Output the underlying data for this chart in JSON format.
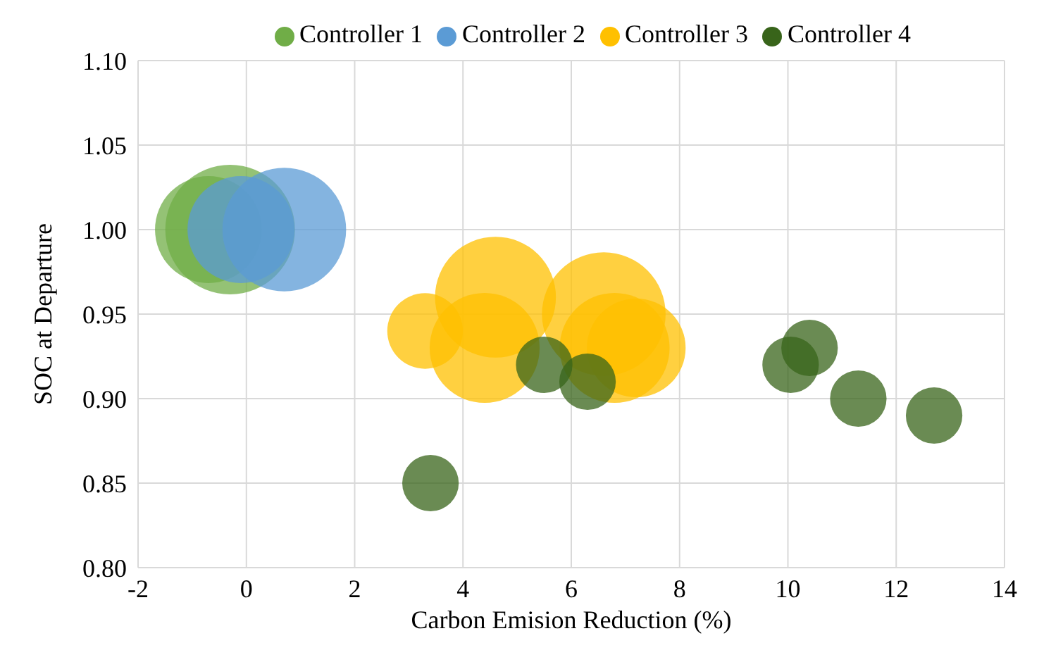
{
  "chart_data": {
    "type": "bubble",
    "xlabel": "Carbon Emision Reduction (%)",
    "ylabel": "SOC at Departure",
    "xlim": [
      -2,
      14
    ],
    "xticks": [
      -2,
      0,
      2,
      4,
      6,
      8,
      10,
      12,
      14
    ],
    "ylim": [
      0.8,
      1.1
    ],
    "yticks": [
      {
        "value": 0.8,
        "label": "0.80"
      },
      {
        "value": 0.85,
        "label": "0.85"
      },
      {
        "value": 0.9,
        "label": "0.90"
      },
      {
        "value": 0.95,
        "label": "0.95"
      },
      {
        "value": 1.0,
        "label": "1.00"
      },
      {
        "value": 1.05,
        "label": "1.05"
      },
      {
        "value": 1.1,
        "label": "1.10"
      }
    ],
    "grid": true,
    "legend": "top",
    "series": [
      {
        "name": "Controller 1",
        "color": "#70ad47",
        "x": [
          -0.7,
          -0.3
        ],
        "values": [
          1.0,
          1.0
        ],
        "sizes": [
          0.68,
          1
        ]
      },
      {
        "name": "Controller 2",
        "color": "#5b9bd5",
        "x": [
          -0.1,
          0.7
        ],
        "values": [
          1.0,
          1.0
        ],
        "sizes": [
          0.68,
          0.91
        ]
      },
      {
        "name": "Controller 3",
        "color": "#ffc000",
        "x": [
          3.3,
          4.6,
          4.4,
          6.6,
          6.8,
          7.2
        ],
        "values": [
          0.94,
          0.96,
          0.93,
          0.95,
          0.93,
          0.93
        ],
        "sizes": [
          0.34,
          0.87,
          0.72,
          0.91,
          0.72,
          0.58
        ]
      },
      {
        "name": "Controller 4",
        "color": "#38641a",
        "x": [
          3.4,
          5.5,
          6.3,
          10.05,
          10.4,
          11.3,
          12.7
        ],
        "values": [
          0.85,
          0.92,
          0.91,
          0.92,
          0.93,
          0.9,
          0.89
        ],
        "sizes": [
          0.19,
          0.19,
          0.19,
          0.19,
          0.19,
          0.19,
          0.19
        ]
      }
    ]
  }
}
